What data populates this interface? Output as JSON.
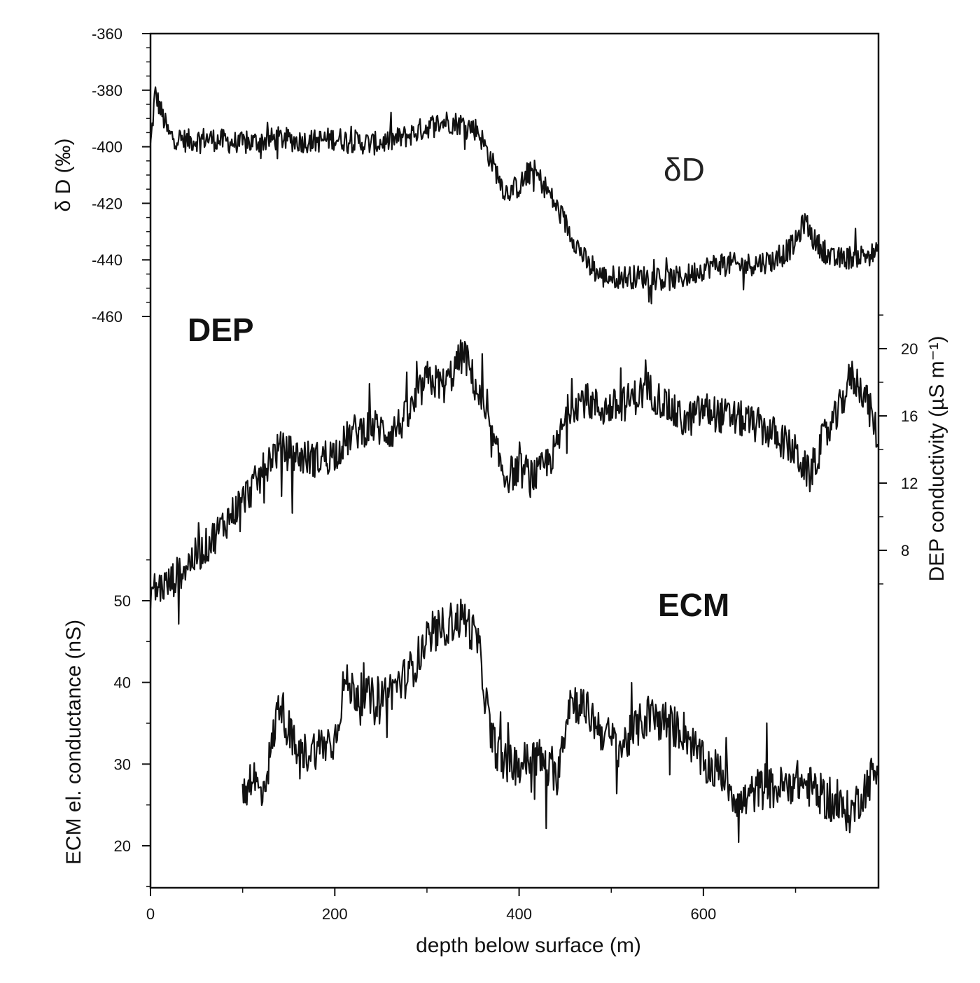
{
  "chart_data": {
    "type": "line",
    "x_axis": {
      "label": "depth below surface (m)",
      "range": [
        0,
        790
      ],
      "ticks": [
        0,
        200,
        400,
        600
      ],
      "tick_labels": [
        "0",
        "200",
        "400",
        "600"
      ]
    },
    "left_axis_top": {
      "label": "δ D (‰)",
      "range": [
        -460,
        -360
      ],
      "ticks": [
        -360,
        -380,
        -400,
        -420,
        -440,
        -460
      ],
      "tick_labels": [
        "-360",
        "-380",
        "-400",
        "-420",
        "-440",
        "-460"
      ]
    },
    "right_axis": {
      "label": "DEP conductivity (µS m⁻¹)",
      "ticks": [
        8,
        12,
        16,
        20
      ],
      "tick_labels": [
        "8",
        "12",
        "16",
        "20"
      ]
    },
    "left_axis_bottom": {
      "label": "ECM el. conductance (nS)",
      "ticks": [
        20,
        30,
        40,
        50
      ],
      "tick_labels": [
        "20",
        "30",
        "40",
        "50"
      ]
    },
    "series": [
      {
        "name": "δD",
        "axis": "left_axis_top",
        "x": [
          0,
          5,
          20,
          40,
          60,
          80,
          100,
          120,
          140,
          160,
          180,
          200,
          220,
          240,
          260,
          280,
          300,
          320,
          340,
          355,
          370,
          385,
          400,
          415,
          430,
          445,
          460,
          475,
          490,
          510,
          540,
          560,
          580,
          600,
          620,
          640,
          660,
          680,
          700,
          710,
          720,
          740,
          760,
          780,
          790
        ],
        "values": [
          -400,
          -381,
          -396,
          -398,
          -397,
          -398,
          -399,
          -398,
          -397,
          -398,
          -398,
          -397,
          -398,
          -399,
          -398,
          -396,
          -393,
          -391,
          -392,
          -394,
          -405,
          -416,
          -414,
          -408,
          -415,
          -424,
          -433,
          -442,
          -446,
          -446,
          -446,
          -447,
          -446,
          -443,
          -441,
          -442,
          -441,
          -440,
          -434,
          -426,
          -433,
          -440,
          -439,
          -438,
          -438
        ]
      },
      {
        "name": "DEP",
        "axis": "right_axis",
        "x": [
          0,
          20,
          40,
          60,
          80,
          100,
          120,
          130,
          140,
          160,
          180,
          200,
          220,
          240,
          260,
          280,
          300,
          320,
          340,
          355,
          370,
          385,
          400,
          420,
          440,
          455,
          470,
          490,
          510,
          540,
          560,
          580,
          600,
          620,
          640,
          660,
          680,
          700,
          715,
          730,
          745,
          760,
          775,
          790
        ],
        "values": [
          5.6,
          6.0,
          7.2,
          8.2,
          9.6,
          11.0,
          12.4,
          13.6,
          14.0,
          13.6,
          13.4,
          13.8,
          15.0,
          15.4,
          15.0,
          16.0,
          18.2,
          17.8,
          19.8,
          17.4,
          14.6,
          12.4,
          12.8,
          12.4,
          14.0,
          16.6,
          17.0,
          16.4,
          16.6,
          17.6,
          16.6,
          15.6,
          16.4,
          16.0,
          15.8,
          15.4,
          14.8,
          13.8,
          12.4,
          14.6,
          16.0,
          18.4,
          17.4,
          14.6
        ]
      },
      {
        "name": "ECM",
        "axis": "left_axis_bottom",
        "x": [
          100,
          110,
          120,
          130,
          140,
          150,
          160,
          180,
          200,
          210,
          220,
          240,
          260,
          280,
          300,
          320,
          340,
          355,
          370,
          385,
          400,
          420,
          440,
          455,
          470,
          490,
          510,
          540,
          560,
          580,
          600,
          620,
          640,
          660,
          680,
          700,
          720,
          740,
          760,
          780,
          790
        ],
        "values": [
          26,
          29,
          26,
          31,
          38,
          34,
          31,
          32,
          33,
          40,
          39,
          38,
          39,
          41,
          45,
          47,
          48,
          45,
          33,
          30,
          30,
          31,
          28,
          38,
          37,
          34,
          32,
          36,
          35,
          34,
          30,
          29,
          25,
          27,
          27,
          28,
          27,
          25,
          24,
          28,
          30
        ]
      }
    ],
    "annotations": [
      "δD",
      "DEP",
      "ECM"
    ]
  }
}
